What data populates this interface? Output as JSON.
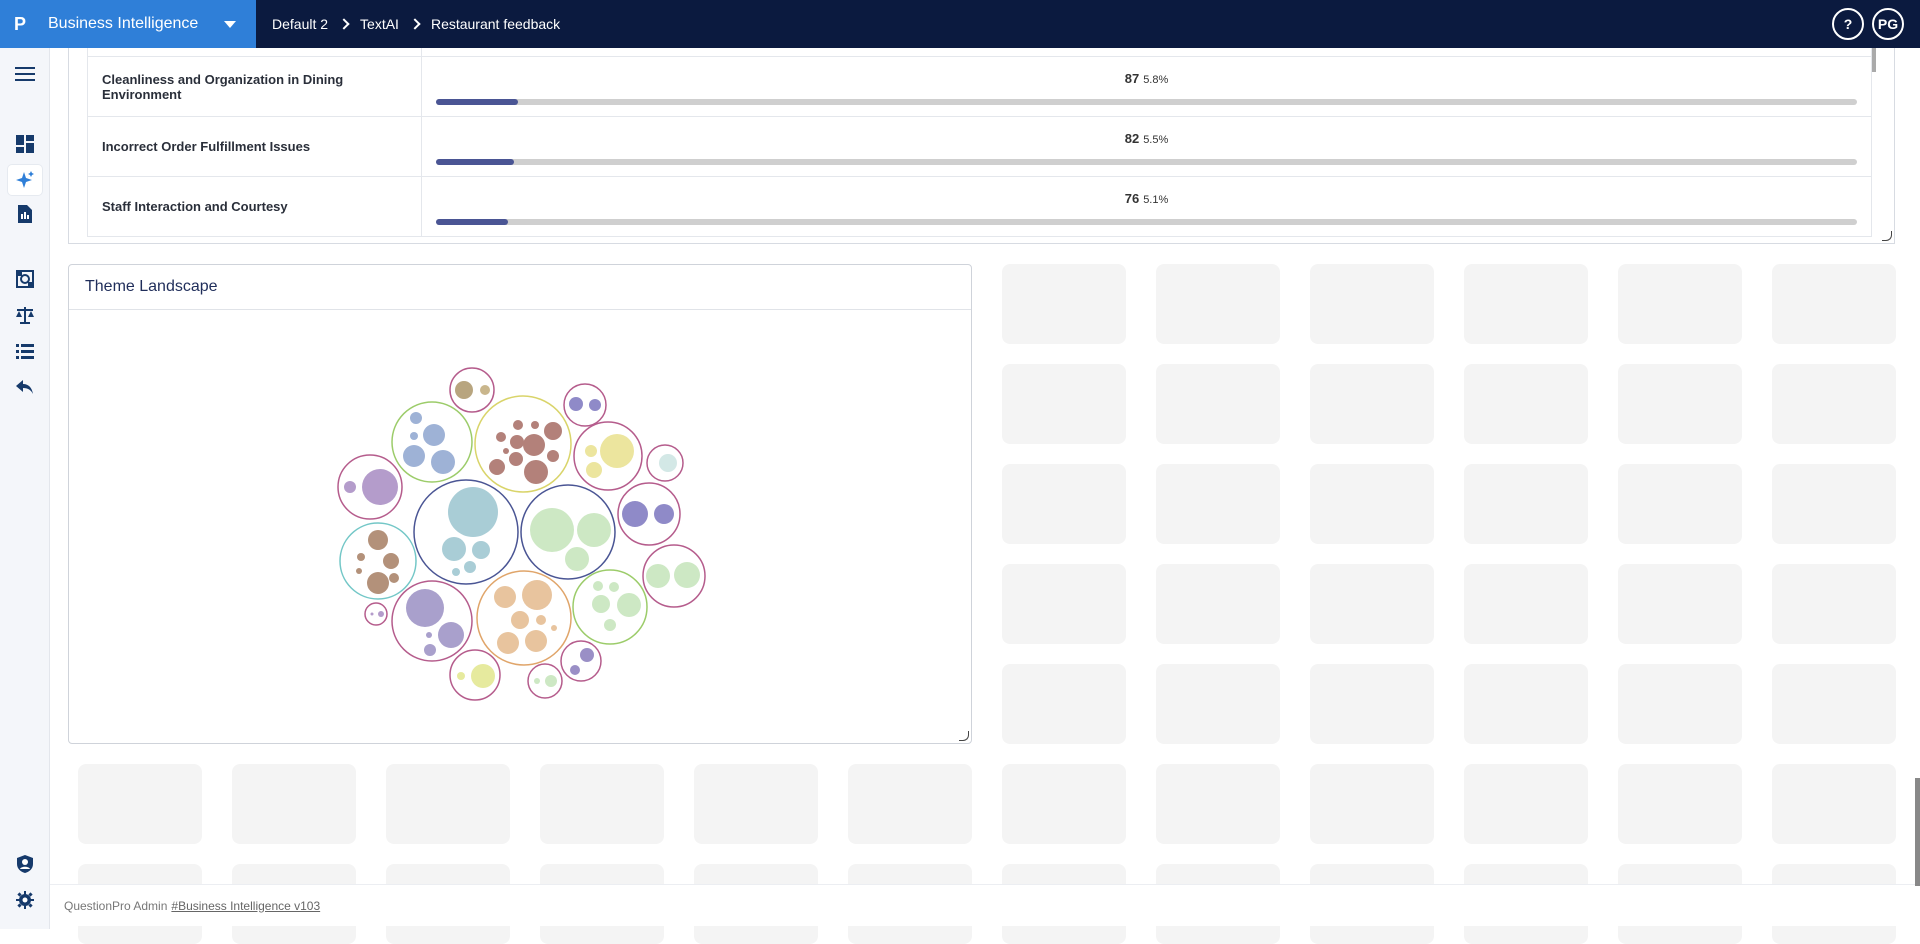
{
  "header": {
    "brand": "Business Intelligence",
    "breadcrumbs": [
      "Default 2",
      "TextAI",
      "Restaurant feedback"
    ],
    "help_label": "?",
    "user_initials": "PG"
  },
  "nav_icons": [
    "menu-icon",
    "dashboard-icon",
    "sparkle-icon",
    "report-icon",
    "scan-icon",
    "scale-icon",
    "list-icon",
    "reply-icon",
    "user-shield-icon",
    "gear-icon"
  ],
  "themes_table": {
    "rows": [
      {
        "label": "Cleanliness and Organization in Dining Environment",
        "count": "87",
        "percent": "5.8%",
        "fraction": 0.058
      },
      {
        "label": "Incorrect Order Fulfillment Issues",
        "count": "82",
        "percent": "5.5%",
        "fraction": 0.055
      },
      {
        "label": "Staff Interaction and Courtesy",
        "count": "76",
        "percent": "5.1%",
        "fraction": 0.051
      }
    ]
  },
  "theme_landscape": {
    "title": "Theme Landscape"
  },
  "footer": {
    "text": "QuestionPro Admin",
    "link": "#Business Intelligence v103"
  }
}
